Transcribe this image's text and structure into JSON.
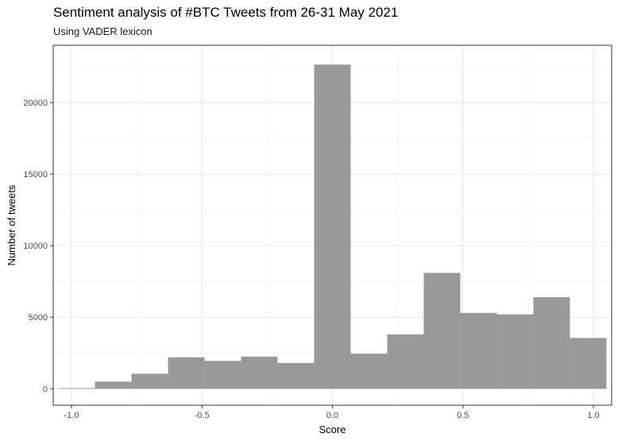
{
  "chart_data": {
    "type": "bar",
    "title": "Sentiment analysis of #BTC Tweets from 26-31 May 2021",
    "subtitle": "Using VADER lexicon",
    "xlabel": "Score",
    "ylabel": "Number of tweets",
    "xlim": [
      -1.07,
      1.07
    ],
    "ylim": [
      -1150,
      24000
    ],
    "x_ticks": [
      -1.0,
      -0.5,
      0.0,
      0.5,
      1.0
    ],
    "x_tick_labels": [
      "-1.0",
      "-0.5",
      "0.0",
      "0.5",
      "1.0"
    ],
    "y_ticks": [
      0,
      5000,
      10000,
      15000,
      20000
    ],
    "y_tick_labels": [
      "0",
      "5000",
      "10000",
      "15000",
      "20000"
    ],
    "grid": true,
    "bar_color": "#999999",
    "bins": [
      {
        "x_min": -1.05,
        "x_max": -0.91,
        "count": 50
      },
      {
        "x_min": -0.91,
        "x_max": -0.77,
        "count": 500
      },
      {
        "x_min": -0.77,
        "x_max": -0.63,
        "count": 1050
      },
      {
        "x_min": -0.63,
        "x_max": -0.49,
        "count": 2200
      },
      {
        "x_min": -0.49,
        "x_max": -0.35,
        "count": 1950
      },
      {
        "x_min": -0.35,
        "x_max": -0.21,
        "count": 2250
      },
      {
        "x_min": -0.21,
        "x_max": -0.07,
        "count": 1800
      },
      {
        "x_min": -0.07,
        "x_max": 0.07,
        "count": 22650
      },
      {
        "x_min": 0.07,
        "x_max": 0.21,
        "count": 2450
      },
      {
        "x_min": 0.21,
        "x_max": 0.35,
        "count": 3800
      },
      {
        "x_min": 0.35,
        "x_max": 0.49,
        "count": 8100
      },
      {
        "x_min": 0.49,
        "x_max": 0.63,
        "count": 5300
      },
      {
        "x_min": 0.63,
        "x_max": 0.77,
        "count": 5200
      },
      {
        "x_min": 0.77,
        "x_max": 0.91,
        "count": 6400
      },
      {
        "x_min": 0.91,
        "x_max": 1.05,
        "count": 3550
      }
    ]
  }
}
